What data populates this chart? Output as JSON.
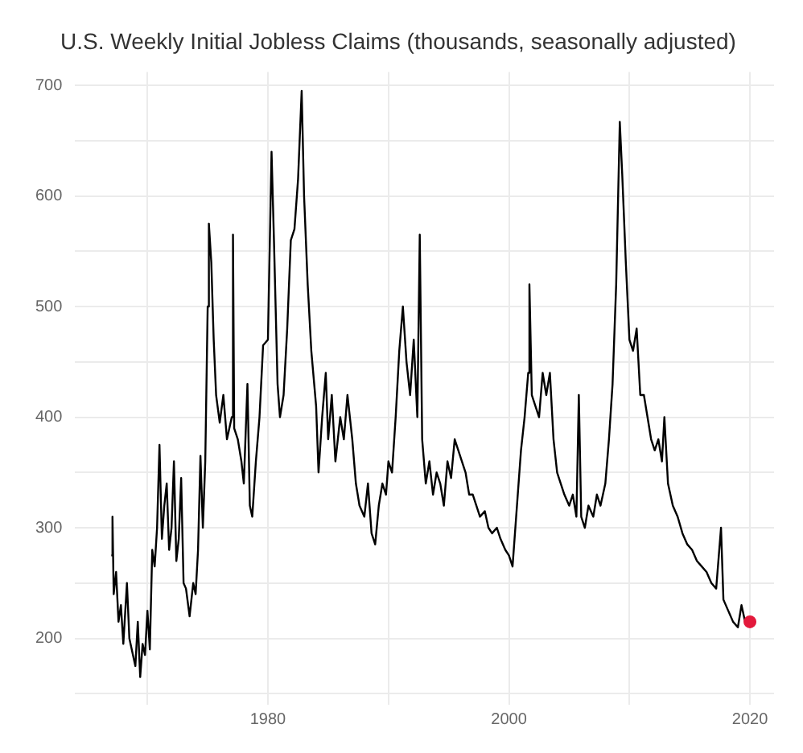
{
  "chart_data": {
    "type": "line",
    "title": "U.S. Weekly Initial Jobless Claims (thousands, seasonally adjusted)",
    "xlim": [
      1964,
      2022
    ],
    "xticks": [
      {
        "value": 1970,
        "label": null
      },
      1980,
      {
        "value": 1990,
        "label": null
      },
      2000,
      {
        "value": 2010,
        "label": null
      },
      2020
    ],
    "ylim": [
      140,
      712
    ],
    "yticks": [
      {
        "value": 150,
        "label": null
      },
      200,
      {
        "value": 250,
        "label": null
      },
      300,
      {
        "value": 350,
        "label": null
      },
      400,
      {
        "value": 450,
        "label": null
      },
      500,
      {
        "value": 550,
        "label": null
      },
      600,
      {
        "value": 650,
        "label": null
      },
      700
    ],
    "grid": true,
    "legend": false,
    "marker": "none",
    "line_style": "solid",
    "series": [
      {
        "type": "line",
        "color": "#000000",
        "x": [
          1967.0,
          1967.1,
          1967.2,
          1967.4,
          1967.6,
          1967.8,
          1968.0,
          1968.3,
          1968.5,
          1968.8,
          1969.0,
          1969.2,
          1969.4,
          1969.6,
          1969.8,
          1970.0,
          1970.2,
          1970.4,
          1970.6,
          1970.8,
          1971.0,
          1971.2,
          1971.4,
          1971.6,
          1971.8,
          1972.0,
          1972.2,
          1972.4,
          1972.6,
          1972.8,
          1973.0,
          1973.2,
          1973.5,
          1973.8,
          1974.0,
          1974.2,
          1974.4,
          1974.6,
          1974.8,
          1975.0,
          1975.1,
          1975.3,
          1975.5,
          1975.7,
          1976.0,
          1976.3,
          1976.6,
          1977.0,
          1977.1,
          1977.2,
          1977.5,
          1977.8,
          1978.0,
          1978.3,
          1978.5,
          1978.7,
          1979.0,
          1979.3,
          1979.6,
          1980.0,
          1980.3,
          1980.5,
          1980.8,
          1981.0,
          1981.3,
          1981.6,
          1981.9,
          1982.2,
          1982.5,
          1982.8,
          1983.0,
          1983.3,
          1983.6,
          1984.0,
          1984.2,
          1984.5,
          1984.8,
          1985.0,
          1985.3,
          1985.6,
          1986.0,
          1986.3,
          1986.6,
          1987.0,
          1987.3,
          1987.6,
          1988.0,
          1988.3,
          1988.6,
          1988.9,
          1989.2,
          1989.5,
          1989.8,
          1990.0,
          1990.3,
          1990.6,
          1990.9,
          1991.2,
          1991.5,
          1991.8,
          1992.1,
          1992.4,
          1992.6,
          1992.8,
          1993.1,
          1993.4,
          1993.7,
          1994.0,
          1994.3,
          1994.6,
          1994.9,
          1995.2,
          1995.5,
          1995.8,
          1996.1,
          1996.4,
          1996.7,
          1997.0,
          1997.3,
          1997.6,
          1998.0,
          1998.3,
          1998.6,
          1999.0,
          1999.3,
          1999.7,
          2000.0,
          2000.3,
          2000.6,
          2001.0,
          2001.3,
          2001.6,
          2001.7,
          2001.9,
          2002.2,
          2002.5,
          2002.8,
          2003.1,
          2003.4,
          2003.7,
          2004.0,
          2004.3,
          2004.6,
          2005.0,
          2005.3,
          2005.6,
          2005.8,
          2006.0,
          2006.3,
          2006.6,
          2007.0,
          2007.3,
          2007.6,
          2008.0,
          2008.3,
          2008.6,
          2008.9,
          2009.2,
          2009.4,
          2009.7,
          2010.0,
          2010.3,
          2010.6,
          2010.9,
          2011.2,
          2011.5,
          2011.8,
          2012.1,
          2012.4,
          2012.7,
          2012.9,
          2013.2,
          2013.6,
          2014.0,
          2014.4,
          2014.8,
          2015.2,
          2015.6,
          2016.0,
          2016.4,
          2016.8,
          2017.2,
          2017.6,
          2017.8,
          2018.2,
          2018.6,
          2019.0,
          2019.3,
          2019.6,
          2020.0
        ],
        "values": [
          275,
          310,
          240,
          260,
          215,
          230,
          195,
          250,
          200,
          185,
          175,
          215,
          165,
          195,
          185,
          225,
          190,
          280,
          265,
          300,
          375,
          290,
          320,
          340,
          280,
          300,
          360,
          270,
          290,
          345,
          250,
          245,
          220,
          250,
          240,
          280,
          365,
          300,
          360,
          500,
          575,
          540,
          470,
          420,
          395,
          420,
          380,
          400,
          565,
          390,
          380,
          360,
          340,
          430,
          320,
          310,
          360,
          400,
          465,
          470,
          640,
          560,
          430,
          400,
          420,
          480,
          560,
          570,
          615,
          695,
          600,
          520,
          460,
          410,
          350,
          400,
          440,
          380,
          420,
          360,
          400,
          380,
          420,
          380,
          340,
          320,
          310,
          340,
          295,
          285,
          320,
          340,
          330,
          360,
          350,
          400,
          460,
          500,
          450,
          420,
          470,
          400,
          565,
          380,
          340,
          360,
          330,
          350,
          340,
          320,
          360,
          345,
          380,
          370,
          360,
          350,
          330,
          330,
          320,
          310,
          315,
          300,
          295,
          300,
          290,
          280,
          275,
          265,
          310,
          370,
          400,
          440,
          520,
          420,
          410,
          400,
          440,
          420,
          440,
          380,
          350,
          340,
          330,
          320,
          330,
          310,
          420,
          310,
          300,
          320,
          310,
          330,
          320,
          340,
          380,
          430,
          520,
          667,
          620,
          540,
          470,
          460,
          480,
          420,
          420,
          400,
          380,
          370,
          380,
          360,
          400,
          340,
          320,
          310,
          295,
          285,
          280,
          270,
          265,
          260,
          250,
          245,
          300,
          235,
          225,
          215,
          210,
          230,
          215,
          215
        ]
      },
      {
        "type": "scatter",
        "color": "#e31a3c",
        "x": [
          2020.0
        ],
        "values": [
          215
        ],
        "marker": "circle"
      }
    ]
  }
}
